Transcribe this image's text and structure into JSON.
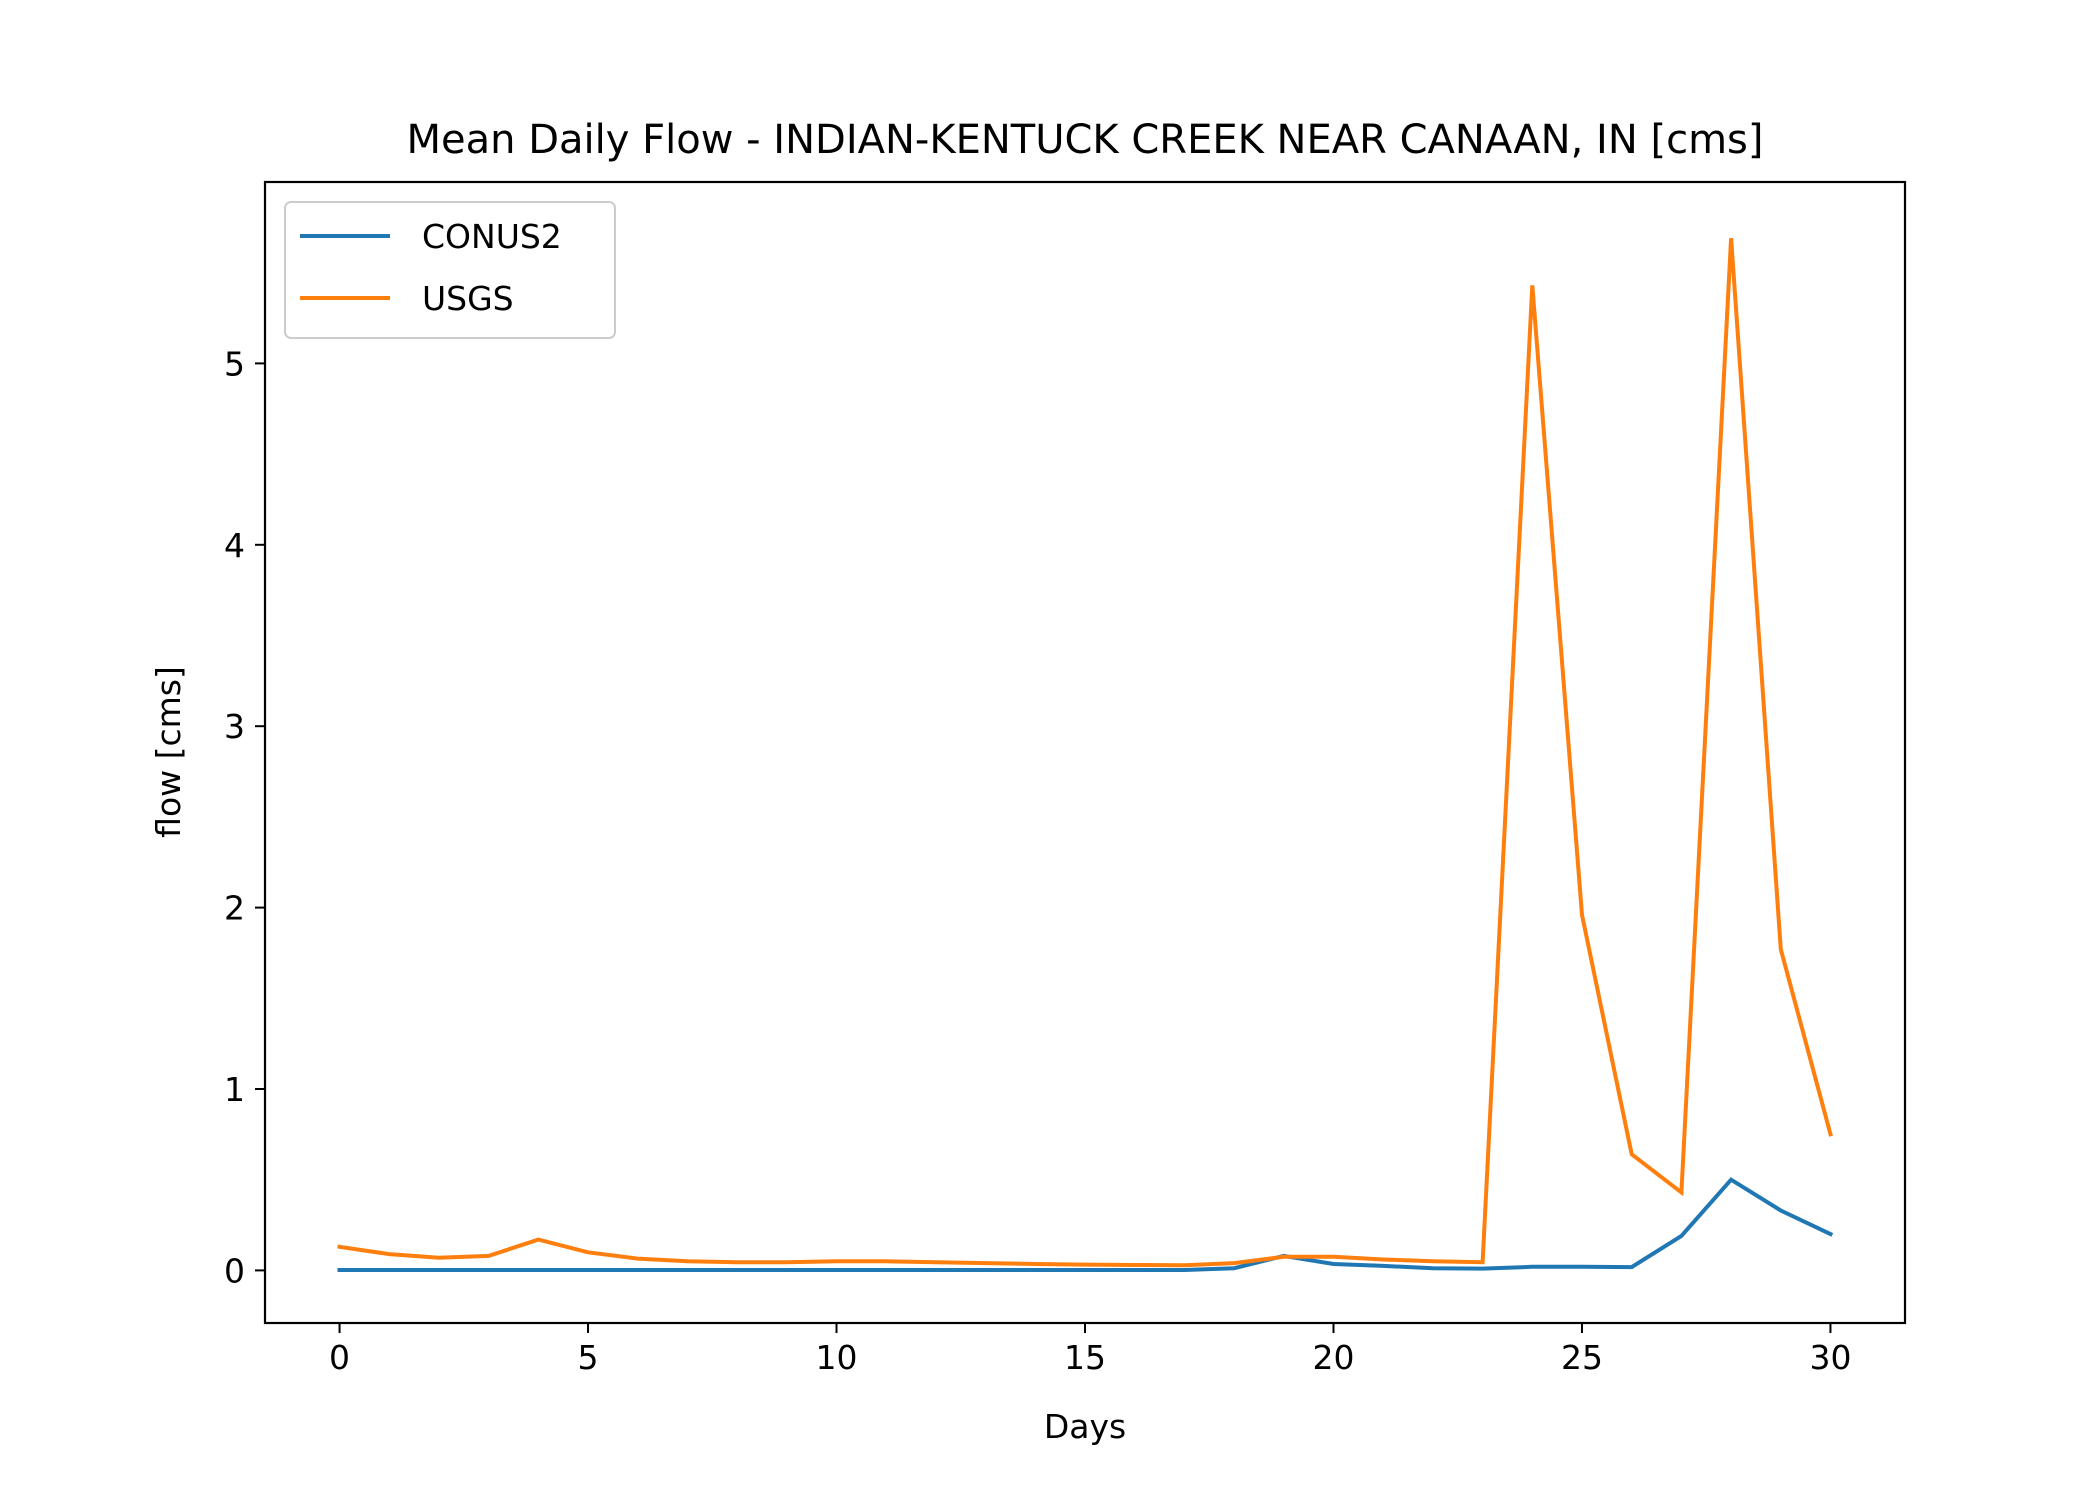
{
  "chart_data": {
    "type": "line",
    "title": "Mean Daily Flow - INDIAN-KENTUCK CREEK NEAR CANAAN, IN [cms]",
    "xlabel": "Days",
    "ylabel": "flow [cms]",
    "xlim": [
      -1.5,
      31.5
    ],
    "ylim": [
      -0.29,
      6.0
    ],
    "xticks": [
      0,
      5,
      10,
      15,
      20,
      25,
      30
    ],
    "yticks": [
      0,
      1,
      2,
      3,
      4,
      5
    ],
    "grid": false,
    "legend": "top-left",
    "x": [
      0,
      1,
      2,
      3,
      4,
      5,
      6,
      7,
      8,
      9,
      10,
      11,
      12,
      13,
      14,
      15,
      16,
      17,
      18,
      19,
      20,
      21,
      22,
      23,
      24,
      25,
      26,
      27,
      28,
      29,
      30
    ],
    "series": [
      {
        "name": "CONUS2",
        "color": "#1f77b4",
        "values": [
          0.002,
          0.002,
          0.002,
          0.002,
          0.002,
          0.002,
          0.002,
          0.002,
          0.002,
          0.002,
          0.002,
          0.002,
          0.002,
          0.002,
          0.002,
          0.002,
          0.002,
          0.002,
          0.012,
          0.08,
          0.035,
          0.025,
          0.012,
          0.01,
          0.02,
          0.02,
          0.018,
          0.19,
          0.5,
          0.33,
          0.2
        ]
      },
      {
        "name": "USGS",
        "color": "#ff7f0e",
        "values": [
          0.13,
          0.09,
          0.07,
          0.08,
          0.17,
          0.1,
          0.065,
          0.05,
          0.045,
          0.045,
          0.05,
          0.05,
          0.045,
          0.04,
          0.035,
          0.032,
          0.03,
          0.028,
          0.04,
          0.075,
          0.075,
          0.06,
          0.05,
          0.045,
          5.43,
          1.96,
          0.64,
          0.43,
          5.69,
          1.77,
          0.75
        ]
      }
    ]
  }
}
